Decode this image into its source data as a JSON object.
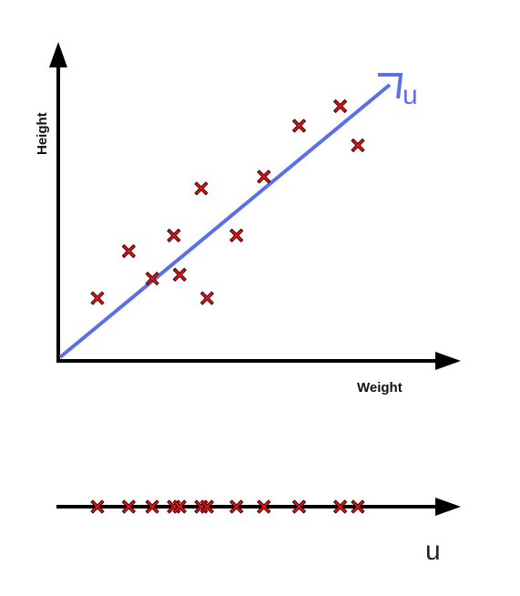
{
  "diagram": {
    "x_axis_label": "Weight",
    "y_axis_label": "Height",
    "direction_label_top": "u",
    "direction_label_bottom": "u"
  },
  "colors": {
    "axis": "#000000",
    "direction_vector": "#5b6fe6",
    "marker_fill": "#e8141b",
    "marker_outline": "#3a0000",
    "background": "#ffffff"
  },
  "icons": {
    "data_point": "x-marker-icon",
    "axis_arrow": "arrow-head-icon"
  },
  "points": [
    {
      "w": 10,
      "h": 16
    },
    {
      "w": 18,
      "h": 28
    },
    {
      "w": 24,
      "h": 21
    },
    {
      "w": 29.5,
      "h": 32
    },
    {
      "w": 31,
      "h": 22
    },
    {
      "w": 36.5,
      "h": 44
    },
    {
      "w": 38,
      "h": 16
    },
    {
      "w": 45.5,
      "h": 32
    },
    {
      "w": 52.5,
      "h": 47
    },
    {
      "w": 61.5,
      "h": 60
    },
    {
      "w": 72,
      "h": 65
    },
    {
      "w": 76.5,
      "h": 55
    }
  ]
}
